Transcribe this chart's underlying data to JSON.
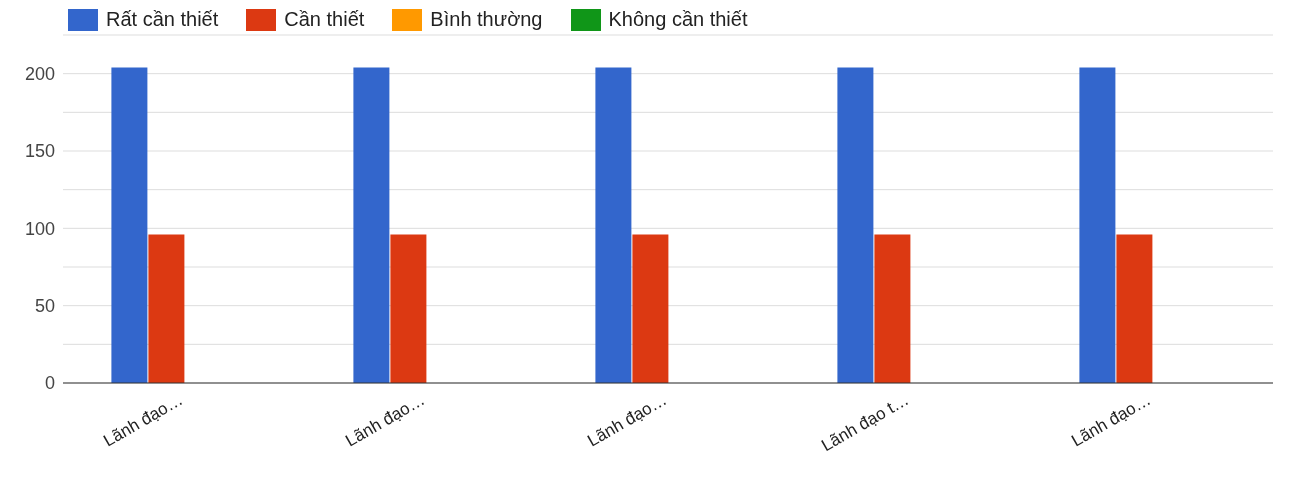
{
  "chart_data": {
    "type": "bar",
    "categories": [
      "Lãnh đạo…",
      "Lãnh đạo…",
      "Lãnh đạo…",
      "Lãnh đạo t…",
      "Lãnh đạo…"
    ],
    "series": [
      {
        "name": "Rất cần thiết",
        "color": "#3366cc",
        "values": [
          204,
          204,
          204,
          204,
          204
        ]
      },
      {
        "name": "Cần thiết",
        "color": "#dc3912",
        "values": [
          96,
          96,
          96,
          96,
          96
        ]
      },
      {
        "name": "Bình thường",
        "color": "#ff9900",
        "values": [
          0,
          0,
          0,
          0,
          0
        ]
      },
      {
        "name": "Không cần thiết",
        "color": "#109618",
        "values": [
          0,
          0,
          0,
          0,
          0
        ]
      }
    ],
    "ylim": [
      0,
      225
    ],
    "yticks": [
      0,
      {
        "value": 25,
        "label": null
      },
      50,
      {
        "value": 75,
        "label": null
      },
      100,
      {
        "value": 125,
        "label": null
      },
      150,
      {
        "value": 175,
        "label": null
      },
      200,
      {
        "value": 225,
        "label": null
      }
    ],
    "grid": "y",
    "legend": "top left"
  }
}
